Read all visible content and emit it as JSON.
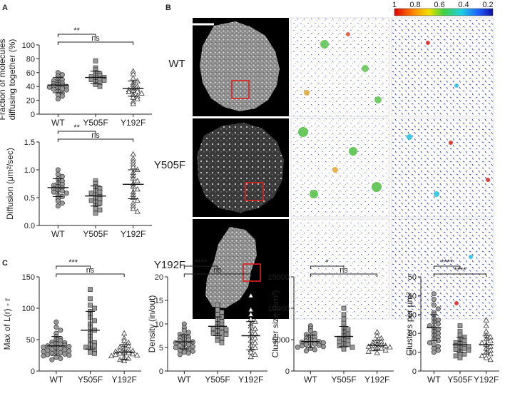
{
  "panel_letters": [
    "A",
    "B",
    "C"
  ],
  "row_labels": [
    "WT",
    "Y505F",
    "Y192F"
  ],
  "colorbar": {
    "ticks": [
      "1",
      "0.8",
      "0.6",
      "0.4",
      "0.2"
    ]
  },
  "chart_data": [
    {
      "type": "scatter",
      "panel": "A",
      "ylabel": "Fraction of molecules diffusing together (%)",
      "ylabel_lines": [
        "Fraction of molecules",
        "diffusing together (%)"
      ],
      "categories": [
        "WT",
        "Y505F",
        "Y192F"
      ],
      "ylim": [
        0,
        100
      ],
      "yticks": [
        "0",
        "20",
        "40",
        "60",
        "80",
        "100"
      ],
      "means": [
        42,
        53,
        37
      ],
      "sd": [
        11,
        9,
        11
      ],
      "marker": [
        "circle",
        "square",
        "triangle"
      ],
      "values": [
        [
          60,
          57,
          55,
          52,
          50,
          48,
          46,
          45,
          44,
          43,
          42,
          41,
          40,
          39,
          38,
          37,
          36,
          35,
          33,
          30,
          28,
          26,
          22
        ],
        [
          77,
          67,
          64,
          60,
          58,
          56,
          55,
          54,
          53,
          52,
          51,
          50,
          49,
          47,
          45,
          43,
          40
        ],
        [
          62,
          58,
          52,
          48,
          45,
          42,
          40,
          38,
          36,
          35,
          34,
          33,
          32,
          30,
          28,
          26,
          24,
          22,
          18,
          15
        ]
      ],
      "significance": [
        {
          "from": "WT",
          "to": "Y505F",
          "label": "**"
        },
        {
          "from": "WT",
          "to": "Y192F",
          "label": "ns"
        }
      ]
    },
    {
      "type": "scatter",
      "panel": "A",
      "ylabel": "Diffusion (μm²/sec)",
      "categories": [
        "WT",
        "Y505F",
        "Y192F"
      ],
      "ylim": [
        0,
        1.5
      ],
      "yticks": [
        "0.0",
        "0.5",
        "1.0",
        "1.5"
      ],
      "means": [
        0.68,
        0.53,
        0.74
      ],
      "sd": [
        0.16,
        0.18,
        0.26
      ],
      "marker": [
        "circle",
        "square",
        "triangle"
      ],
      "values": [
        [
          1.0,
          0.92,
          0.88,
          0.84,
          0.8,
          0.76,
          0.74,
          0.72,
          0.7,
          0.68,
          0.66,
          0.64,
          0.62,
          0.6,
          0.58,
          0.55,
          0.52,
          0.48,
          0.44,
          0.4,
          0.35
        ],
        [
          0.8,
          0.75,
          0.7,
          0.66,
          0.62,
          0.6,
          0.58,
          0.55,
          0.52,
          0.5,
          0.48,
          0.45,
          0.42,
          0.4,
          0.35,
          0.3,
          0.28,
          0.22
        ],
        [
          1.28,
          1.2,
          1.15,
          1.1,
          1.05,
          1.0,
          0.95,
          0.9,
          0.85,
          0.8,
          0.75,
          0.7,
          0.65,
          0.6,
          0.55,
          0.5,
          0.45,
          0.4,
          0.35,
          0.3,
          0.25
        ]
      ],
      "significance": [
        {
          "from": "WT",
          "to": "Y505F",
          "label": "**"
        },
        {
          "from": "WT",
          "to": "Y192F",
          "label": "ns"
        }
      ]
    },
    {
      "type": "scatter",
      "panel": "C",
      "ylabel": "Max of L(r) - r",
      "categories": [
        "WT",
        "Y505F",
        "Y192F"
      ],
      "ylim": [
        0,
        150
      ],
      "yticks": [
        "0",
        "50",
        "100",
        "150"
      ],
      "means": [
        40,
        65,
        30
      ],
      "sd": [
        15,
        30,
        12
      ],
      "marker": [
        "circle",
        "square",
        "triangle"
      ],
      "values": [
        [
          78,
          70,
          65,
          60,
          55,
          52,
          50,
          48,
          46,
          45,
          44,
          43,
          42,
          41,
          40,
          39,
          38,
          37,
          36,
          35,
          34,
          33,
          32,
          31,
          30,
          29,
          28,
          27,
          26,
          25,
          24,
          22,
          20,
          18
        ],
        [
          130,
          115,
          105,
          100,
          95,
          90,
          85,
          80,
          75,
          70,
          65,
          60,
          55,
          50,
          45,
          42,
          40,
          38,
          35,
          32,
          30,
          28
        ],
        [
          60,
          52,
          48,
          45,
          42,
          40,
          38,
          36,
          34,
          33,
          32,
          31,
          30,
          29,
          28,
          27,
          26,
          25,
          24,
          22,
          20,
          18,
          16
        ]
      ],
      "significance": [
        {
          "from": "WT",
          "to": "Y505F",
          "label": "***"
        },
        {
          "from": "WT",
          "to": "Y192F",
          "label": "ns"
        }
      ]
    },
    {
      "type": "scatter",
      "panel": "C",
      "ylabel": "Density (in/out)",
      "categories": [
        "WT",
        "Y505F",
        "Y192F"
      ],
      "ylim": [
        0,
        20
      ],
      "yticks": [
        "0",
        "5",
        "10",
        "15",
        "20"
      ],
      "means": [
        6.2,
        9.5,
        7.5
      ],
      "sd": [
        1.5,
        2.0,
        3.0
      ],
      "marker": [
        "circle",
        "square",
        "triangle"
      ],
      "values": [
        [
          10,
          9.2,
          8.6,
          8.2,
          7.8,
          7.5,
          7.2,
          7.0,
          6.8,
          6.6,
          6.4,
          6.2,
          6.0,
          5.8,
          5.6,
          5.4,
          5.2,
          5.0,
          4.8,
          4.6,
          4.4,
          4.2,
          4.0,
          3.8,
          3.5
        ],
        [
          14,
          13,
          12.5,
          12,
          11.5,
          11,
          10.5,
          10,
          9.8,
          9.5,
          9.2,
          9,
          8.8,
          8.5,
          8.2,
          8,
          7.8,
          7.5,
          7,
          6.5,
          6
        ],
        [
          16,
          13,
          12,
          11,
          10.5,
          10,
          9.5,
          9,
          8.5,
          8,
          7.5,
          7,
          6.5,
          6,
          5.5,
          5,
          4.5,
          4,
          3.5,
          3
        ]
      ],
      "significance": [
        {
          "from": "WT",
          "to": "Y505F",
          "label": "****"
        },
        {
          "from": "WT",
          "to": "Y192F",
          "label": "ns"
        }
      ]
    },
    {
      "type": "scatter",
      "panel": "C",
      "ylabel": "Cluster size (nm²)",
      "categories": [
        "WT",
        "Y505F",
        "Y192F"
      ],
      "ylim": [
        0,
        15000
      ],
      "yticks": [
        "0",
        "5000",
        "10000",
        "15000"
      ],
      "means": [
        4700,
        5500,
        4100
      ],
      "sd": [
        1000,
        1600,
        800
      ],
      "marker": [
        "circle",
        "square",
        "triangle"
      ],
      "values": [
        [
          7200,
          6800,
          6400,
          6000,
          5800,
          5600,
          5400,
          5200,
          5000,
          4900,
          4800,
          4700,
          4600,
          4500,
          4400,
          4300,
          4200,
          4100,
          4000,
          3900,
          3800,
          3600,
          3400,
          3200
        ],
        [
          10000,
          9000,
          8200,
          7600,
          7000,
          6600,
          6200,
          5800,
          5600,
          5400,
          5200,
          5000,
          4800,
          4600,
          4400,
          4200,
          4000,
          3800,
          3500
        ],
        [
          6200,
          5600,
          5200,
          4900,
          4700,
          4500,
          4300,
          4200,
          4100,
          4000,
          3900,
          3800,
          3700,
          3600,
          3500,
          3300,
          3100,
          2900
        ]
      ],
      "significance": [
        {
          "from": "WT",
          "to": "Y505F",
          "label": "*"
        },
        {
          "from": "WT",
          "to": "Y192F",
          "label": "ns"
        }
      ]
    },
    {
      "type": "scatter",
      "panel": "C",
      "ylabel": "Clusters per μm²",
      "categories": [
        "WT",
        "Y505F",
        "Y192F"
      ],
      "ylim": [
        0,
        50
      ],
      "yticks": [
        "0",
        "10",
        "20",
        "30",
        "40",
        "50"
      ],
      "means": [
        23,
        14,
        14
      ],
      "sd": [
        7,
        4,
        5
      ],
      "marker": [
        "circle",
        "square",
        "triangle"
      ],
      "values": [
        [
          41,
          38,
          35,
          33,
          31,
          30,
          28,
          27,
          26,
          25,
          24,
          23,
          22,
          21,
          20,
          19,
          18,
          17,
          16,
          15,
          14,
          13,
          12,
          11,
          10
        ],
        [
          24,
          21,
          19,
          18,
          17,
          16,
          15,
          14.5,
          14,
          13.5,
          13,
          12.5,
          12,
          11.5,
          11,
          10,
          9,
          8,
          7
        ],
        [
          27,
          24,
          21,
          19,
          18,
          17,
          16,
          15,
          14,
          13,
          12,
          11,
          10,
          9,
          8,
          7,
          6
        ]
      ],
      "significance": [
        {
          "from": "WT",
          "to": "Y505F",
          "label": "****"
        },
        {
          "from": "WT",
          "to": "Y192F",
          "label": "****"
        }
      ]
    }
  ]
}
